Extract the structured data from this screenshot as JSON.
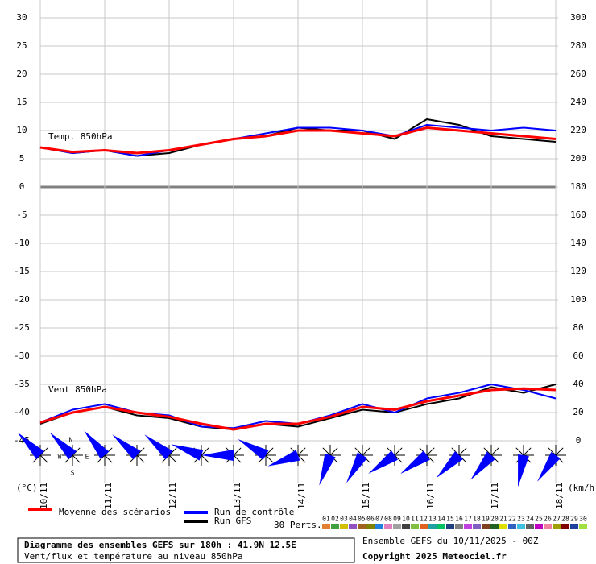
{
  "chart_data": {
    "type": "line",
    "title": "Diagramme des ensembles GEFS sur 180h : 41.9N 12.5E",
    "subtitle": "Vent/flux et température au niveau 850hPa",
    "run_label": "Ensemble GEFS du 10/11/2025 - 00Z",
    "copyright": "Copyright 2025 Meteociel.fr",
    "annotations": {
      "temp": "Temp. 850hPa",
      "wind": "Vent 850hPa",
      "y_unit": "(°C)",
      "y2_unit": "(km/h)"
    },
    "compass": {
      "n": "N",
      "w": "W",
      "e": "E",
      "s": "S"
    },
    "x": [
      0,
      12,
      24,
      36,
      48,
      60,
      72,
      84,
      96,
      108,
      120,
      132,
      144,
      156,
      168,
      180,
      192
    ],
    "xlim": [
      0,
      192
    ],
    "xticks": [
      {
        "value": 0,
        "label": "10/11"
      },
      {
        "value": 24,
        "label": "11/11"
      },
      {
        "value": 48,
        "label": "12/11"
      },
      {
        "value": 72,
        "label": "13/11"
      },
      {
        "value": 96,
        "label": "14/11"
      },
      {
        "value": 120,
        "label": "15/11"
      },
      {
        "value": 144,
        "label": "16/11"
      },
      {
        "value": 168,
        "label": "17/11"
      },
      {
        "value": 192,
        "label": "18/11"
      }
    ],
    "ylim": [
      -45,
      30
    ],
    "yticks": [
      -45,
      -40,
      -35,
      -30,
      -25,
      -20,
      -15,
      -10,
      -5,
      0,
      5,
      10,
      15,
      20,
      25,
      30
    ],
    "y2lim": [
      0,
      300
    ],
    "y2ticks": [
      0,
      20,
      40,
      60,
      80,
      100,
      120,
      140,
      160,
      180,
      200,
      220,
      240,
      260,
      280,
      300
    ],
    "grid": true,
    "series": [
      {
        "name": "Moyenne des scénarios",
        "color": "#ff0000",
        "values": [
          7,
          6.2,
          6.5,
          6,
          6.5,
          7.5,
          8.5,
          9,
          10,
          10,
          9.5,
          9,
          10.5,
          10,
          9.5,
          9,
          8.5
        ],
        "wind": [
          13,
          20,
          24,
          20,
          17,
          12,
          8,
          12,
          12,
          17,
          24,
          22,
          28,
          32,
          36,
          37,
          36
        ]
      },
      {
        "name": "Run de contrôle",
        "color": "#0000ff",
        "values": [
          7,
          6,
          6.5,
          5.5,
          6.5,
          7.5,
          8.5,
          9.5,
          10.5,
          10.5,
          10,
          9,
          11,
          10.5,
          10,
          10.5,
          10
        ],
        "wind": [
          13,
          22,
          26,
          20,
          18,
          10,
          9,
          14,
          12,
          18,
          26,
          20,
          30,
          34,
          40,
          36,
          30
        ]
      },
      {
        "name": "Run GFS",
        "color": "#000000",
        "values": [
          7,
          6,
          6.5,
          5.5,
          6,
          7.5,
          8.5,
          9,
          10.5,
          10,
          10,
          8.5,
          12,
          11,
          9,
          8.5,
          8
        ],
        "wind": [
          12,
          20,
          24,
          18,
          16,
          10,
          8,
          12,
          10,
          16,
          22,
          20,
          26,
          30,
          38,
          34,
          40
        ]
      }
    ],
    "wind_directions": [
      315,
      315,
      320,
      310,
      310,
      290,
      270,
      300,
      250,
      200,
      210,
      235,
      235,
      225,
      220,
      190,
      215
    ],
    "perturbations_label": "30 Perts.",
    "perturbations": [
      {
        "name": "01",
        "color": "#e08030"
      },
      {
        "name": "02",
        "color": "#40a040"
      },
      {
        "name": "03",
        "color": "#d0c000"
      },
      {
        "name": "04",
        "color": "#9050c0"
      },
      {
        "name": "05",
        "color": "#a06020"
      },
      {
        "name": "06",
        "color": "#808000"
      },
      {
        "name": "07",
        "color": "#2080e0"
      },
      {
        "name": "08",
        "color": "#e080c0"
      },
      {
        "name": "09",
        "color": "#a0a0a0"
      },
      {
        "name": "10",
        "color": "#404040"
      },
      {
        "name": "11",
        "color": "#80c040"
      },
      {
        "name": "12",
        "color": "#e06020"
      },
      {
        "name": "13",
        "color": "#20a0a0"
      },
      {
        "name": "14",
        "color": "#00c060"
      },
      {
        "name": "15",
        "color": "#204080"
      },
      {
        "name": "16",
        "color": "#808080"
      },
      {
        "name": "17",
        "color": "#c040e0"
      },
      {
        "name": "18",
        "color": "#8060c0"
      },
      {
        "name": "19",
        "color": "#804020"
      },
      {
        "name": "20",
        "color": "#206020"
      },
      {
        "name": "21",
        "color": "#e0e000"
      },
      {
        "name": "22",
        "color": "#3060c0"
      },
      {
        "name": "23",
        "color": "#40c0e0"
      },
      {
        "name": "24",
        "color": "#606060"
      },
      {
        "name": "25",
        "color": "#c000c0"
      },
      {
        "name": "26",
        "color": "#f080a0"
      },
      {
        "name": "27",
        "color": "#a0a000"
      },
      {
        "name": "28",
        "color": "#800000"
      },
      {
        "name": "29",
        "color": "#2040a0"
      },
      {
        "name": "30",
        "color": "#a0e040"
      }
    ]
  }
}
